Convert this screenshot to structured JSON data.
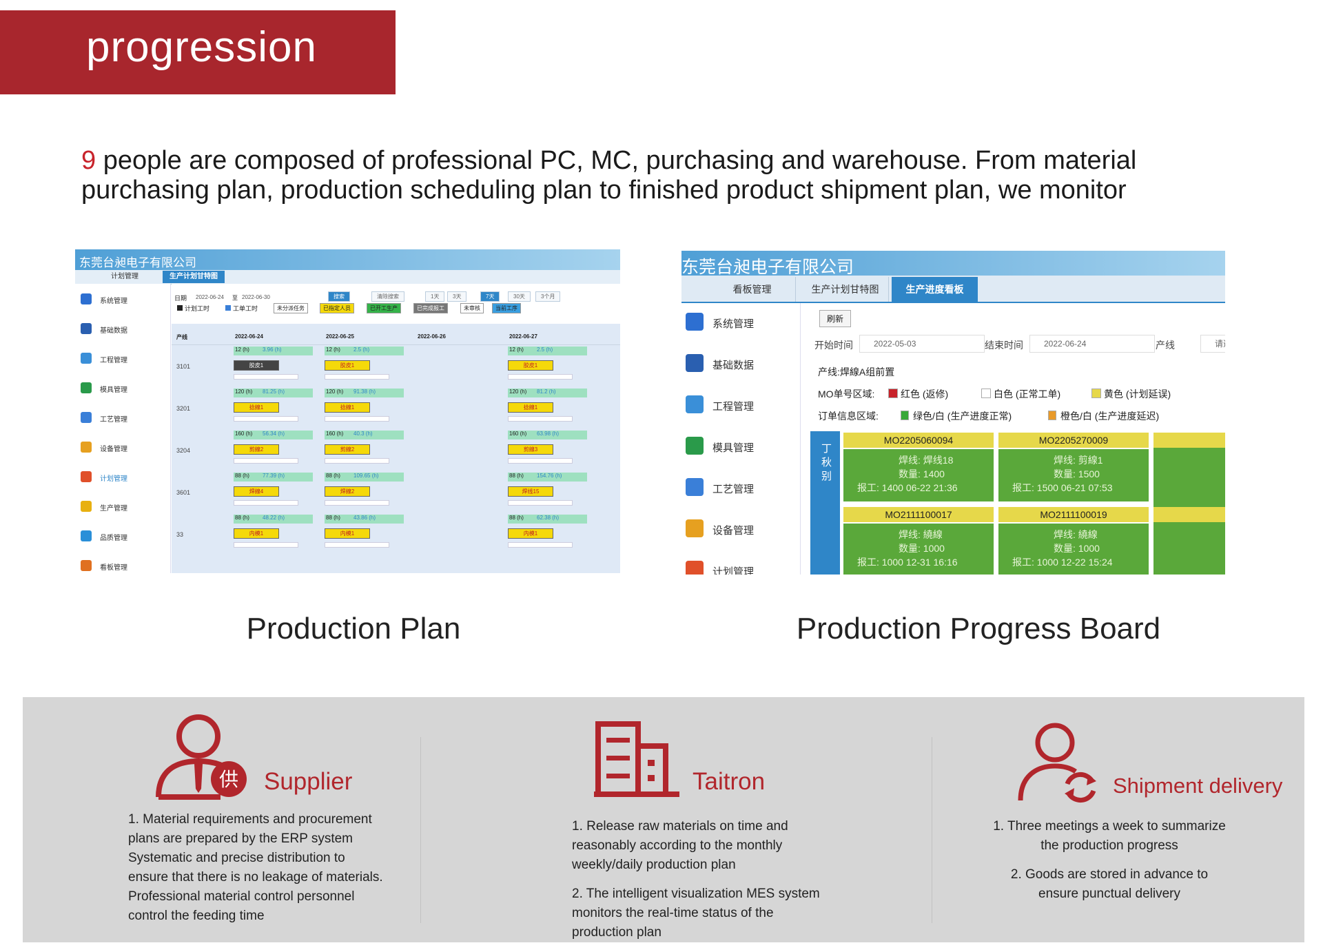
{
  "header": {
    "title": "progression"
  },
  "intro": {
    "highlight": "9",
    "text": "people are composed of professional PC, MC, purchasing and warehouse. From  material purchasing plan, production scheduling plan to finished product shipment plan, we monitor"
  },
  "plan": {
    "caption": "Production Plan",
    "company": "东莞台昶电子有限公司",
    "tabs": [
      "计划管理",
      "生产计划甘特图"
    ],
    "menu": [
      "系统管理",
      "基础数据",
      "工程管理",
      "模具管理",
      "工艺管理",
      "设备管理",
      "计划管理",
      "生产管理",
      "品质管理",
      "看板管理"
    ],
    "date_label": "日期",
    "date_from": "2022-06-24",
    "date_sep": "至",
    "date_to": "2022-06-30",
    "buttons": [
      "搜索",
      "清除搜索",
      "1天",
      "3天",
      "7天",
      "30天",
      "3个月"
    ],
    "legend": [
      "计划工时",
      "工单工时",
      "未分派任务",
      "已指定人员",
      "已开工生产",
      "已完成报工",
      "未审核",
      "当前工序"
    ],
    "columns": [
      "产线",
      "2022-06-24",
      "2022-06-25",
      "2022-06-26",
      "2022-06-27"
    ],
    "rows": [
      {
        "line": "3101",
        "cells": [
          {
            "plan": "12 (h)",
            "used": "3.96 (h)",
            "task": "胶皮1"
          },
          {
            "plan": "12 (h)",
            "used": "2.5 (h)",
            "task": "胶皮1"
          },
          null,
          {
            "plan": "12 (h)",
            "used": "2.5 (h)",
            "task": "胶皮1"
          }
        ]
      },
      {
        "line": "3201",
        "cells": [
          {
            "plan": "120 (h)",
            "used": "81.25 (h)",
            "task": "捻線1"
          },
          {
            "plan": "120 (h)",
            "used": "91.38 (h)",
            "task": "捻線1"
          },
          null,
          {
            "plan": "120 (h)",
            "used": "81.2 (h)",
            "task": "捻線1"
          }
        ]
      },
      {
        "line": "3204",
        "cells": [
          {
            "plan": "160 (h)",
            "used": "56.34 (h)",
            "task": "剪線2"
          },
          {
            "plan": "160 (h)",
            "used": "40.3 (h)",
            "task": "剪線2"
          },
          null,
          {
            "plan": "160 (h)",
            "used": "63.98 (h)",
            "task": "剪線3"
          }
        ]
      },
      {
        "line": "3601",
        "cells": [
          {
            "plan": "88 (h)",
            "used": "77.39 (h)",
            "task": "焊線4"
          },
          {
            "plan": "88 (h)",
            "used": "109.65 (h)",
            "task": "焊線2"
          },
          null,
          {
            "plan": "88 (h)",
            "used": "154.76 (h)",
            "task": "焊线15"
          }
        ]
      },
      {
        "line": "33",
        "cells": [
          {
            "plan": "88 (h)",
            "used": "48.22 (h)",
            "task": "内模1"
          },
          {
            "plan": "88 (h)",
            "used": "43.86 (h)",
            "task": "内模1"
          },
          null,
          {
            "plan": "88 (h)",
            "used": "62.38 (h)",
            "task": "内模1"
          }
        ]
      }
    ]
  },
  "board": {
    "caption": "Production Progress Board",
    "company": "东莞台昶电子有限公司",
    "tabs": [
      "看板管理",
      "生产计划甘特图",
      "生产进度看板"
    ],
    "menu": [
      "系统管理",
      "基础数据",
      "工程管理",
      "模具管理",
      "工艺管理",
      "设备管理",
      "计划管理"
    ],
    "refresh": "刷新",
    "filters": [
      {
        "label": "开始时间",
        "value": "2022-05-03"
      },
      {
        "label": "结束时间",
        "value": "2022-06-24"
      },
      {
        "label": "产线",
        "value": "请选择"
      }
    ],
    "line": "产线:焊線A组前置",
    "mo_legend": {
      "label": "MO单号区域:",
      "items": [
        "红色 (返修)",
        "白色 (正常工单)",
        "黄色 (计划延误)"
      ]
    },
    "order_legend": {
      "label": "订单信息区域:",
      "items": [
        "绿色/白 (生产进度正常)",
        "橙色/白 (生产进度延迟)"
      ]
    },
    "side": "丁秋别",
    "cards": [
      {
        "mo": "MO2205060094",
        "line": "焊线: 焊线18",
        "qty": "数量: 1400",
        "report": "报工: 1400 06-22 21:36"
      },
      {
        "mo": "MO2205270009",
        "line": "焊线: 剪線1",
        "qty": "数量: 1500",
        "report": "报工: 1500 06-21 07:53"
      },
      {
        "mo": "MO2111100017",
        "line": "焊线: 繞線",
        "qty": "数量: 1000",
        "report": "报工: 1000 12-31 16:16"
      },
      {
        "mo": "MO2111100019",
        "line": "焊线: 繞線",
        "qty": "数量: 1000",
        "report": "报工: 1000 12-22 15:24"
      }
    ]
  },
  "features": [
    {
      "title": "Supplier",
      "items": [
        "1. Material requirements and procurement plans are prepared by the ERP system Systematic and precise distribution to ensure that there is no leakage of materials. Professional material control personnel control the feeding time"
      ]
    },
    {
      "title": "Taitron",
      "items": [
        "1. Release raw materials on time and reasonably according to the monthly weekly/daily production plan",
        "2. The intelligent visualization MES system monitors the real-time status of the production plan"
      ]
    },
    {
      "title": "Shipment delivery",
      "items": [
        "1. Three meetings a week to summarize the production progress",
        "2. Goods are stored in advance to ensure punctual delivery"
      ]
    }
  ]
}
